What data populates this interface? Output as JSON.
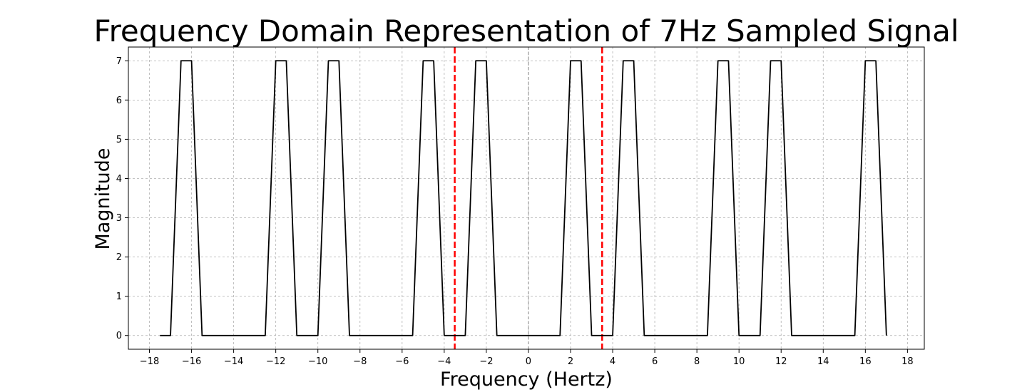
{
  "chart_data": {
    "type": "line",
    "title": "Frequency Domain Representation of 7Hz Sampled Signal",
    "xlabel": "Frequency (Hertz)",
    "ylabel": "Magnitude",
    "xlim": [
      -19.0,
      18.8
    ],
    "ylim": [
      -0.35,
      7.35
    ],
    "xticks": [
      -18,
      -16,
      -14,
      -12,
      -10,
      -8,
      -6,
      -4,
      -2,
      0,
      2,
      4,
      6,
      8,
      10,
      12,
      14,
      16,
      18
    ],
    "xtick_labels": [
      "−18",
      "−16",
      "−14",
      "−12",
      "−10",
      "−8",
      "−6",
      "−4",
      "−2",
      "0",
      "2",
      "4",
      "6",
      "8",
      "10",
      "12",
      "14",
      "16",
      "18"
    ],
    "yticks": [
      0,
      1,
      2,
      3,
      4,
      5,
      6,
      7
    ],
    "ytick_labels": [
      "0",
      "1",
      "2",
      "3",
      "4",
      "5",
      "6",
      "7"
    ],
    "grid": true,
    "series": [
      {
        "color": "#000000",
        "x": [
          -17.5,
          -17.0,
          -16.5,
          -16.0,
          -15.5,
          -12.5,
          -12.0,
          -11.5,
          -11.0,
          -10.0,
          -9.5,
          -9.0,
          -8.5,
          -5.5,
          -5.0,
          -4.5,
          -4.0,
          -3.0,
          -2.5,
          -2.0,
          -1.5,
          1.5,
          2.0,
          2.5,
          3.0,
          4.0,
          4.5,
          5.0,
          5.5,
          8.5,
          9.0,
          9.5,
          10.0,
          11.0,
          11.5,
          12.0,
          12.5,
          15.5,
          16.0,
          16.5,
          17.0
        ],
        "y": [
          0,
          0,
          7,
          7,
          0,
          0,
          7,
          7,
          0,
          0,
          7,
          7,
          0,
          0,
          7,
          7,
          0,
          0,
          7,
          7,
          0,
          0,
          7,
          7,
          0,
          0,
          7,
          7,
          0,
          0,
          7,
          7,
          0,
          0,
          7,
          7,
          0,
          0,
          7,
          7,
          0
        ]
      }
    ],
    "vlines": [
      {
        "x": -3.5,
        "color": "#ff0000",
        "style": "dashed"
      },
      {
        "x": 3.5,
        "color": "#ff0000",
        "style": "dashed"
      },
      {
        "x": 0,
        "color": "#808080",
        "style": "dashed"
      }
    ]
  }
}
